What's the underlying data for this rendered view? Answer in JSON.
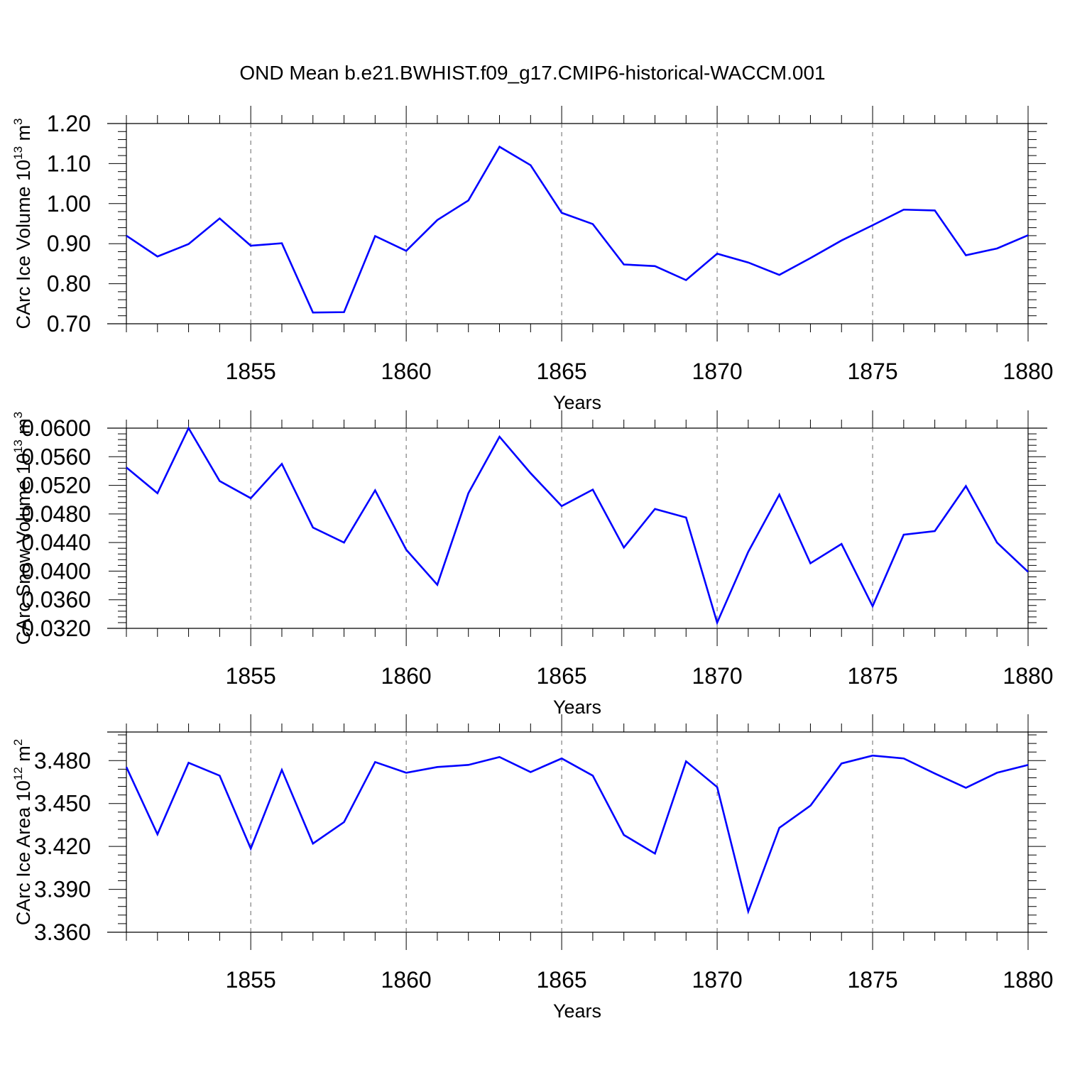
{
  "title": "OND Mean b.e21.BWHIST.f09_g17.CMIP6-historical-WACCM.001",
  "line_color": "#0000ff",
  "chart_data": [
    {
      "type": "line",
      "xlabel": "Years",
      "ylabel_main": "CArc Ice Volume 10",
      "ylabel_exp": "13",
      "ylabel_unit": " m",
      "ylabel_unit_exp": "3",
      "xlim": [
        1851,
        1880
      ],
      "ylim": [
        0.7,
        1.2
      ],
      "ytick_values": [
        0.7,
        0.8,
        0.9,
        1.0,
        1.1,
        1.2
      ],
      "ytick_labels": [
        "0.70",
        "0.80",
        "0.90",
        "1.00",
        "1.10",
        "1.20"
      ],
      "xtick_values": [
        1855,
        1860,
        1865,
        1870,
        1875,
        1880
      ],
      "xtick_labels": [
        "1855",
        "1860",
        "1865",
        "1870",
        "1875",
        "1880"
      ],
      "x": [
        1851,
        1852,
        1853,
        1854,
        1855,
        1856,
        1857,
        1858,
        1859,
        1860,
        1861,
        1862,
        1863,
        1864,
        1865,
        1866,
        1867,
        1868,
        1869,
        1870,
        1871,
        1872,
        1873,
        1874,
        1875,
        1876,
        1877,
        1878,
        1879,
        1880
      ],
      "values": [
        0.92,
        0.868,
        0.899,
        0.963,
        0.895,
        0.901,
        0.728,
        0.729,
        0.919,
        0.882,
        0.959,
        1.008,
        1.142,
        1.096,
        0.977,
        0.949,
        0.848,
        0.844,
        0.809,
        0.875,
        0.853,
        0.822,
        0.864,
        0.908,
        0.946,
        0.985,
        0.983,
        0.871,
        0.888,
        0.921
      ]
    },
    {
      "type": "line",
      "xlabel": "Years",
      "ylabel_main": "CArc Snow Volume 10",
      "ylabel_exp": "13",
      "ylabel_unit": " m",
      "ylabel_unit_exp": "3",
      "xlim": [
        1851,
        1880
      ],
      "ylim": [
        0.032,
        0.06
      ],
      "ytick_values": [
        0.032,
        0.036,
        0.04,
        0.044,
        0.048,
        0.052,
        0.056,
        0.06
      ],
      "ytick_labels": [
        "0.0320",
        "0.0360",
        "0.0400",
        "0.0440",
        "0.0480",
        "0.0520",
        "0.0560",
        "0.0600"
      ],
      "xtick_values": [
        1855,
        1860,
        1865,
        1870,
        1875,
        1880
      ],
      "xtick_labels": [
        "1855",
        "1860",
        "1865",
        "1870",
        "1875",
        "1880"
      ],
      "x": [
        1851,
        1852,
        1853,
        1854,
        1855,
        1856,
        1857,
        1858,
        1859,
        1860,
        1861,
        1862,
        1863,
        1864,
        1865,
        1866,
        1867,
        1868,
        1869,
        1870,
        1871,
        1872,
        1873,
        1874,
        1875,
        1876,
        1877,
        1878,
        1879,
        1880
      ],
      "values": [
        0.0545,
        0.0509,
        0.06,
        0.0526,
        0.0502,
        0.055,
        0.0461,
        0.044,
        0.0513,
        0.043,
        0.0381,
        0.0509,
        0.0588,
        0.0537,
        0.0491,
        0.0514,
        0.0433,
        0.0487,
        0.0475,
        0.0328,
        0.0427,
        0.0507,
        0.0411,
        0.0438,
        0.0351,
        0.0451,
        0.0456,
        0.0519,
        0.044,
        0.0399
      ]
    },
    {
      "type": "line",
      "xlabel": "Years",
      "ylabel_main": "CArc Ice Area 10",
      "ylabel_exp": "12",
      "ylabel_unit": " m",
      "ylabel_unit_exp": "2",
      "xlim": [
        1851,
        1880
      ],
      "ylim": [
        3.36,
        3.5
      ],
      "ytick_values": [
        3.36,
        3.39,
        3.42,
        3.45,
        3.48
      ],
      "ytick_labels": [
        "3.360",
        "3.390",
        "3.420",
        "3.450",
        "3.480"
      ],
      "xtick_values": [
        1855,
        1860,
        1865,
        1870,
        1875,
        1880
      ],
      "xtick_labels": [
        "1855",
        "1860",
        "1865",
        "1870",
        "1875",
        "1880"
      ],
      "x": [
        1851,
        1852,
        1853,
        1854,
        1855,
        1856,
        1857,
        1858,
        1859,
        1860,
        1861,
        1862,
        1863,
        1864,
        1865,
        1866,
        1867,
        1868,
        1869,
        1870,
        1871,
        1872,
        1873,
        1874,
        1875,
        1876,
        1877,
        1878,
        1879,
        1880
      ],
      "values": [
        3.4755,
        3.4285,
        3.4785,
        3.4695,
        3.4185,
        3.4735,
        3.422,
        3.437,
        3.479,
        3.4715,
        3.4755,
        3.477,
        3.4825,
        3.472,
        3.4815,
        3.4695,
        3.428,
        3.415,
        3.4795,
        3.4615,
        3.3745,
        3.433,
        3.4485,
        3.478,
        3.4835,
        3.4815,
        3.471,
        3.461,
        3.4715,
        3.477
      ]
    }
  ]
}
